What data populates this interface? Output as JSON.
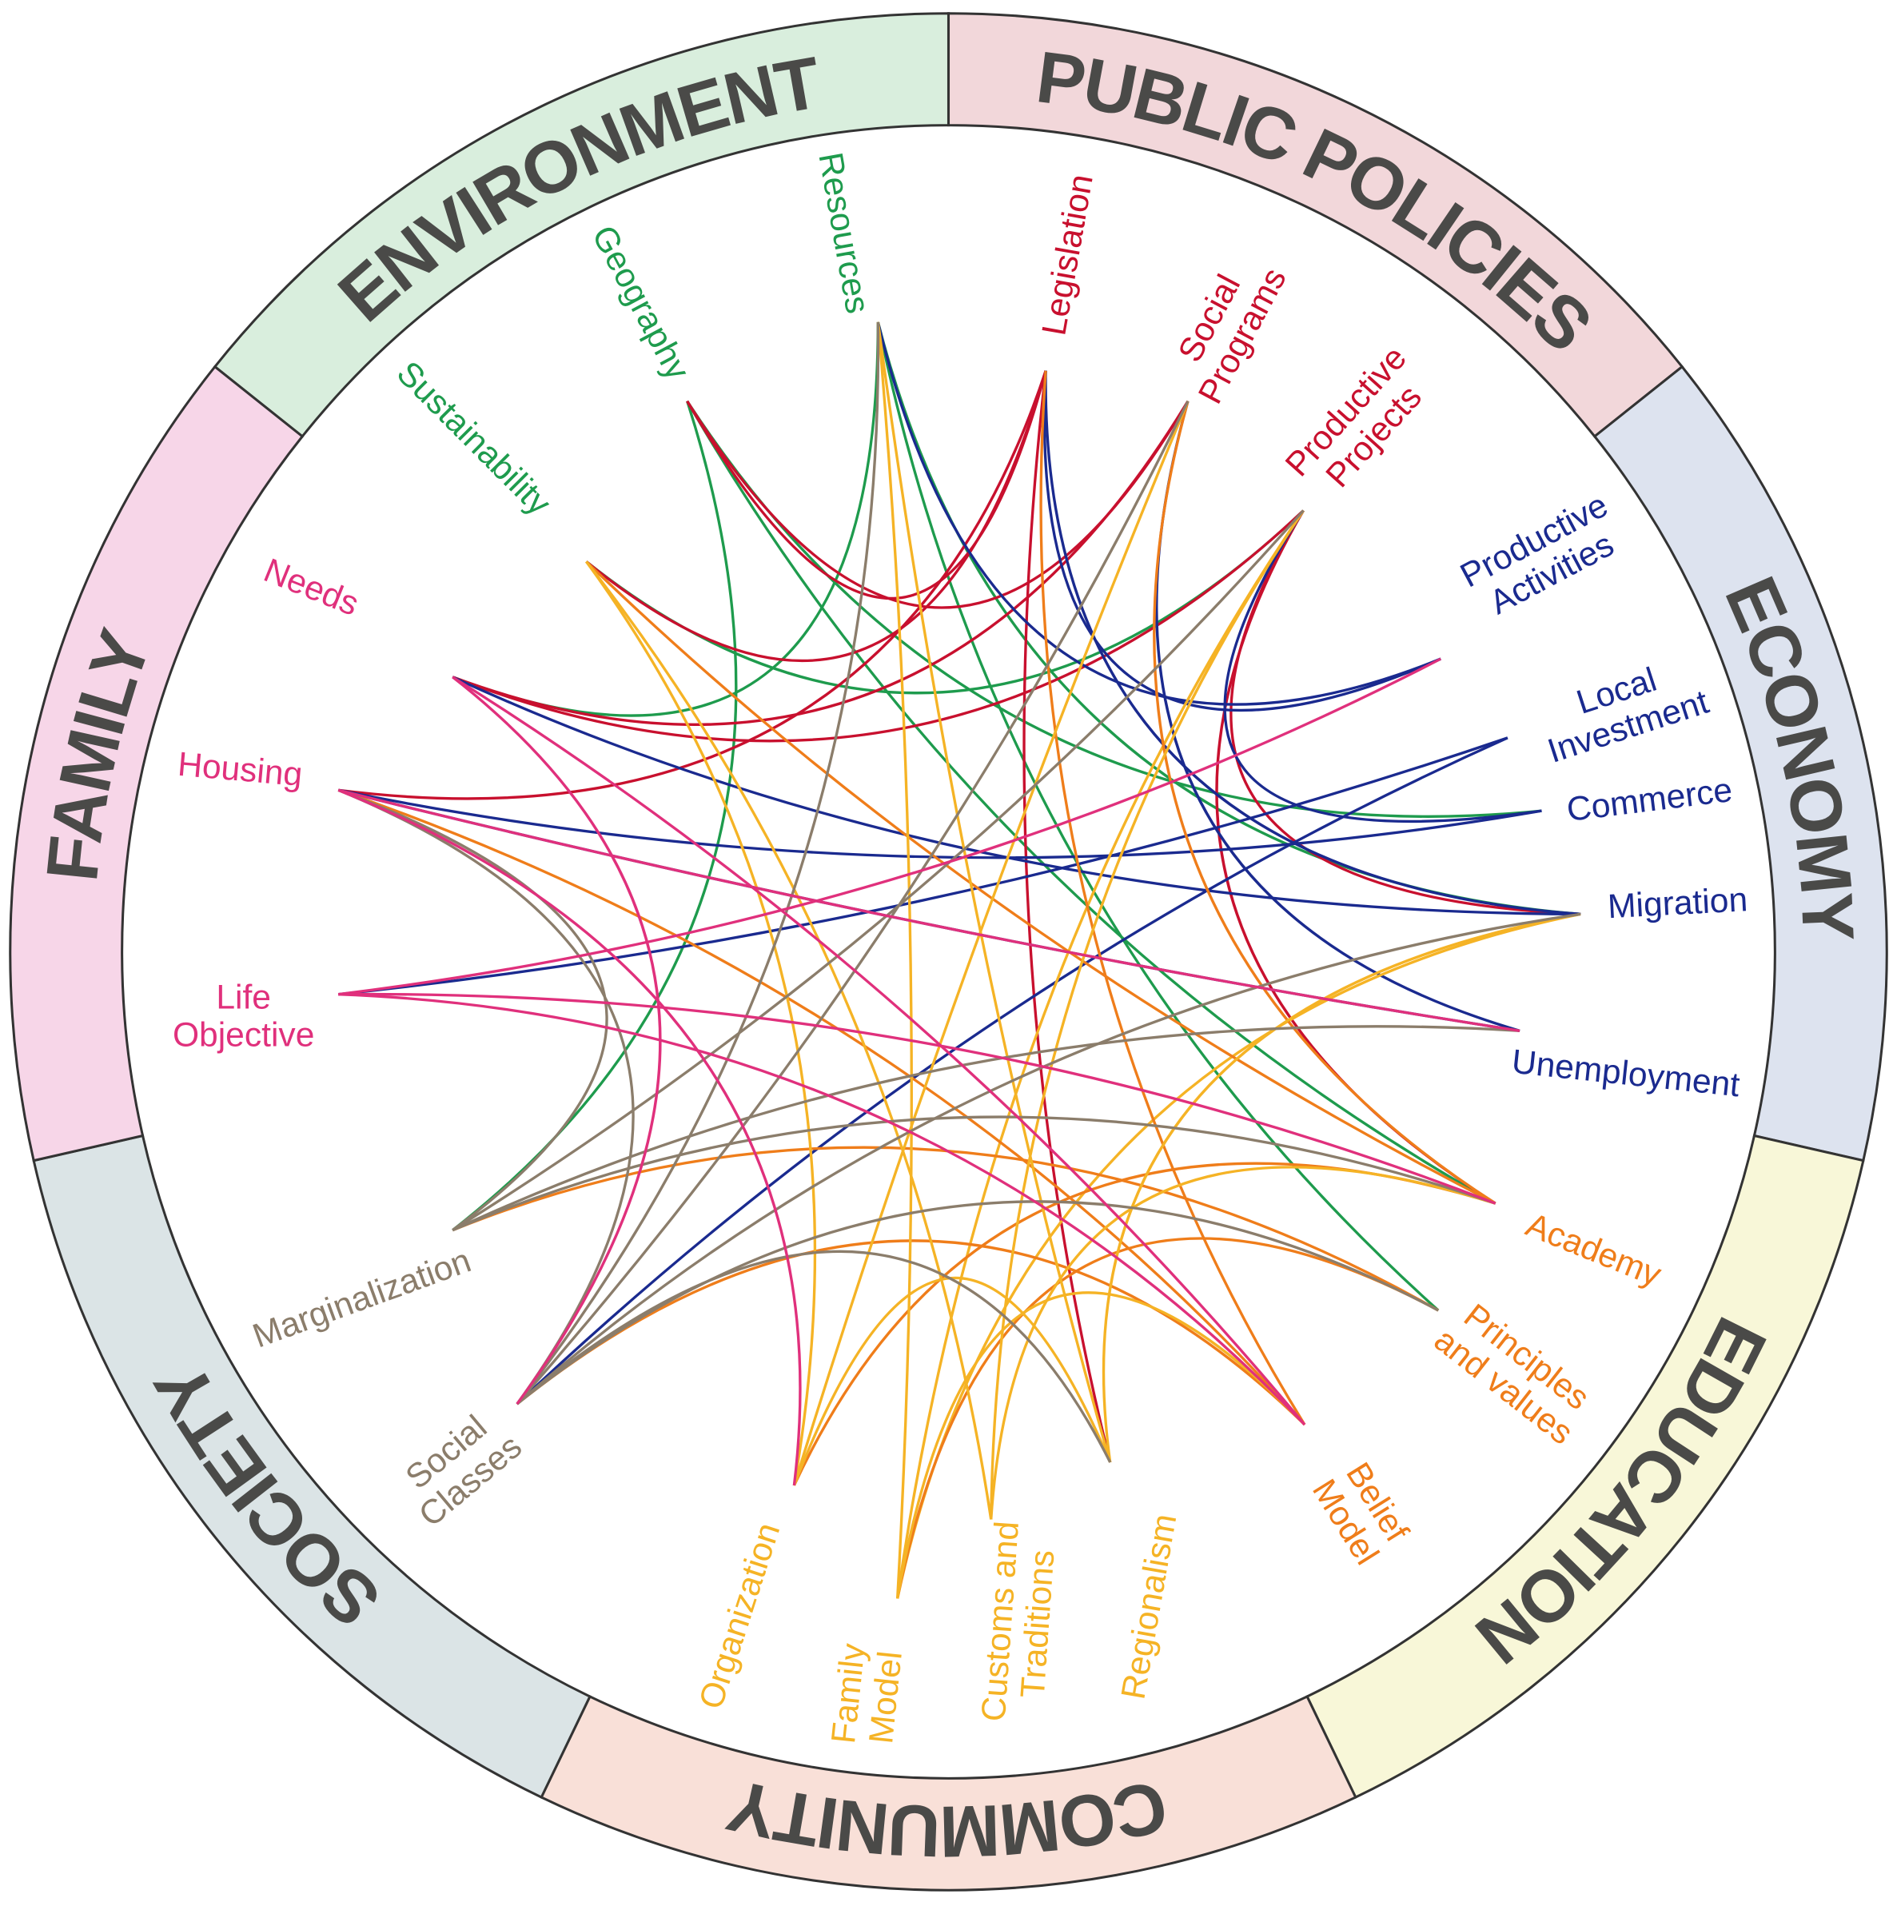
{
  "sectors": [
    {
      "title": "ENVIRONMENT",
      "color": "#d9eedd",
      "node_color": "#1e9b4d",
      "nodes": [
        {
          "lines": [
            "Sustainability"
          ]
        },
        {
          "lines": [
            "Geography"
          ]
        },
        {
          "lines": [
            "Resources"
          ]
        }
      ]
    },
    {
      "title": "PUBLIC POLICIES",
      "color": "#f2d7da",
      "node_color": "#c8102e",
      "nodes": [
        {
          "lines": [
            "Legislation"
          ]
        },
        {
          "lines": [
            "Social",
            "Programs"
          ]
        },
        {
          "lines": [
            "Productive",
            "Projects"
          ]
        }
      ]
    },
    {
      "title": "ECONOMY",
      "color": "#dde3ef",
      "node_color": "#1a2a8f",
      "nodes": [
        {
          "lines": [
            "Productive",
            "Activities"
          ]
        },
        {
          "lines": [
            "Local",
            "Investment"
          ]
        },
        {
          "lines": [
            "Commerce"
          ]
        },
        {
          "lines": [
            "Migration"
          ]
        },
        {
          "lines": [
            "Unemployment"
          ]
        }
      ]
    },
    {
      "title": "EDUCATION",
      "color": "#f8f7d8",
      "node_color": "#ef7d1a",
      "nodes": [
        {
          "lines": [
            "Academy"
          ]
        },
        {
          "lines": [
            "Principles",
            "and values"
          ]
        },
        {
          "lines": [
            "Belief",
            "Model"
          ]
        }
      ]
    },
    {
      "title": "COMMUNITY",
      "color": "#f9e0d8",
      "node_color": "#f5b325",
      "nodes": [
        {
          "lines": [
            "Regionalism"
          ]
        },
        {
          "lines": [
            "Customs and",
            "Traditions"
          ]
        },
        {
          "lines": [
            "Family",
            "Model"
          ]
        },
        {
          "lines": [
            "Organization"
          ]
        }
      ]
    },
    {
      "title": "SOCIETY",
      "color": "#dbe4e6",
      "node_color": "#8b7d6b",
      "nodes": [
        {
          "lines": [
            "Social",
            "Classes"
          ]
        },
        {
          "lines": [
            "Marginalization"
          ]
        }
      ]
    },
    {
      "title": "FAMILY",
      "color": "#f7d6e8",
      "node_color": "#e0307c",
      "nodes": [
        {
          "lines": [
            "Life",
            "Objective"
          ]
        },
        {
          "lines": [
            "Housing"
          ]
        },
        {
          "lines": [
            "Needs"
          ]
        }
      ]
    }
  ]
}
